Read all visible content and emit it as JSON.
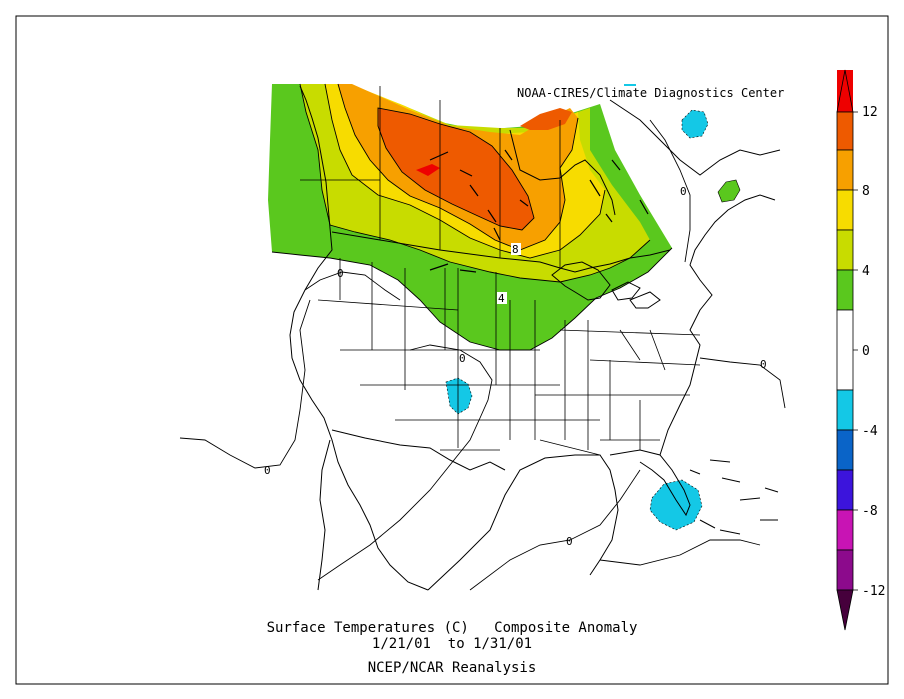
{
  "credit": "NOAA-CIRES/Climate Diagnostics Center",
  "caption": {
    "line1": "Surface Temperatures (C)   Composite Anomaly",
    "line2": "1/21/01  to 1/31/01",
    "line3": "NCEP/NCAR Reanalysis"
  },
  "colorbar": {
    "labels": [
      "12",
      "8",
      "4",
      "0",
      "-4",
      "-8",
      "-12"
    ],
    "colors": {
      "above_12": "#ee0000",
      "10_12": "#ee5a00",
      "8_10": "#f7a000",
      "6_8": "#f7dc00",
      "4_6": "#c8dc00",
      "2_4": "#5ac81e",
      "-2_2": "#ffffff",
      "-4_-2": "#14c8e6",
      "-6_-4": "#0a64c8",
      "-8_-6": "#3c14dc",
      "-10_-8": "#c814b4",
      "-12_-10": "#8c0a8c",
      "below_-12": "#46003c"
    }
  },
  "contour_labels": {
    "l8": "8",
    "l4": "4",
    "l0_nw": "0",
    "l0_w": "0",
    "l0_c": "0",
    "l0_e": "0",
    "l0_s": "0",
    "l0_ne": "0"
  }
}
